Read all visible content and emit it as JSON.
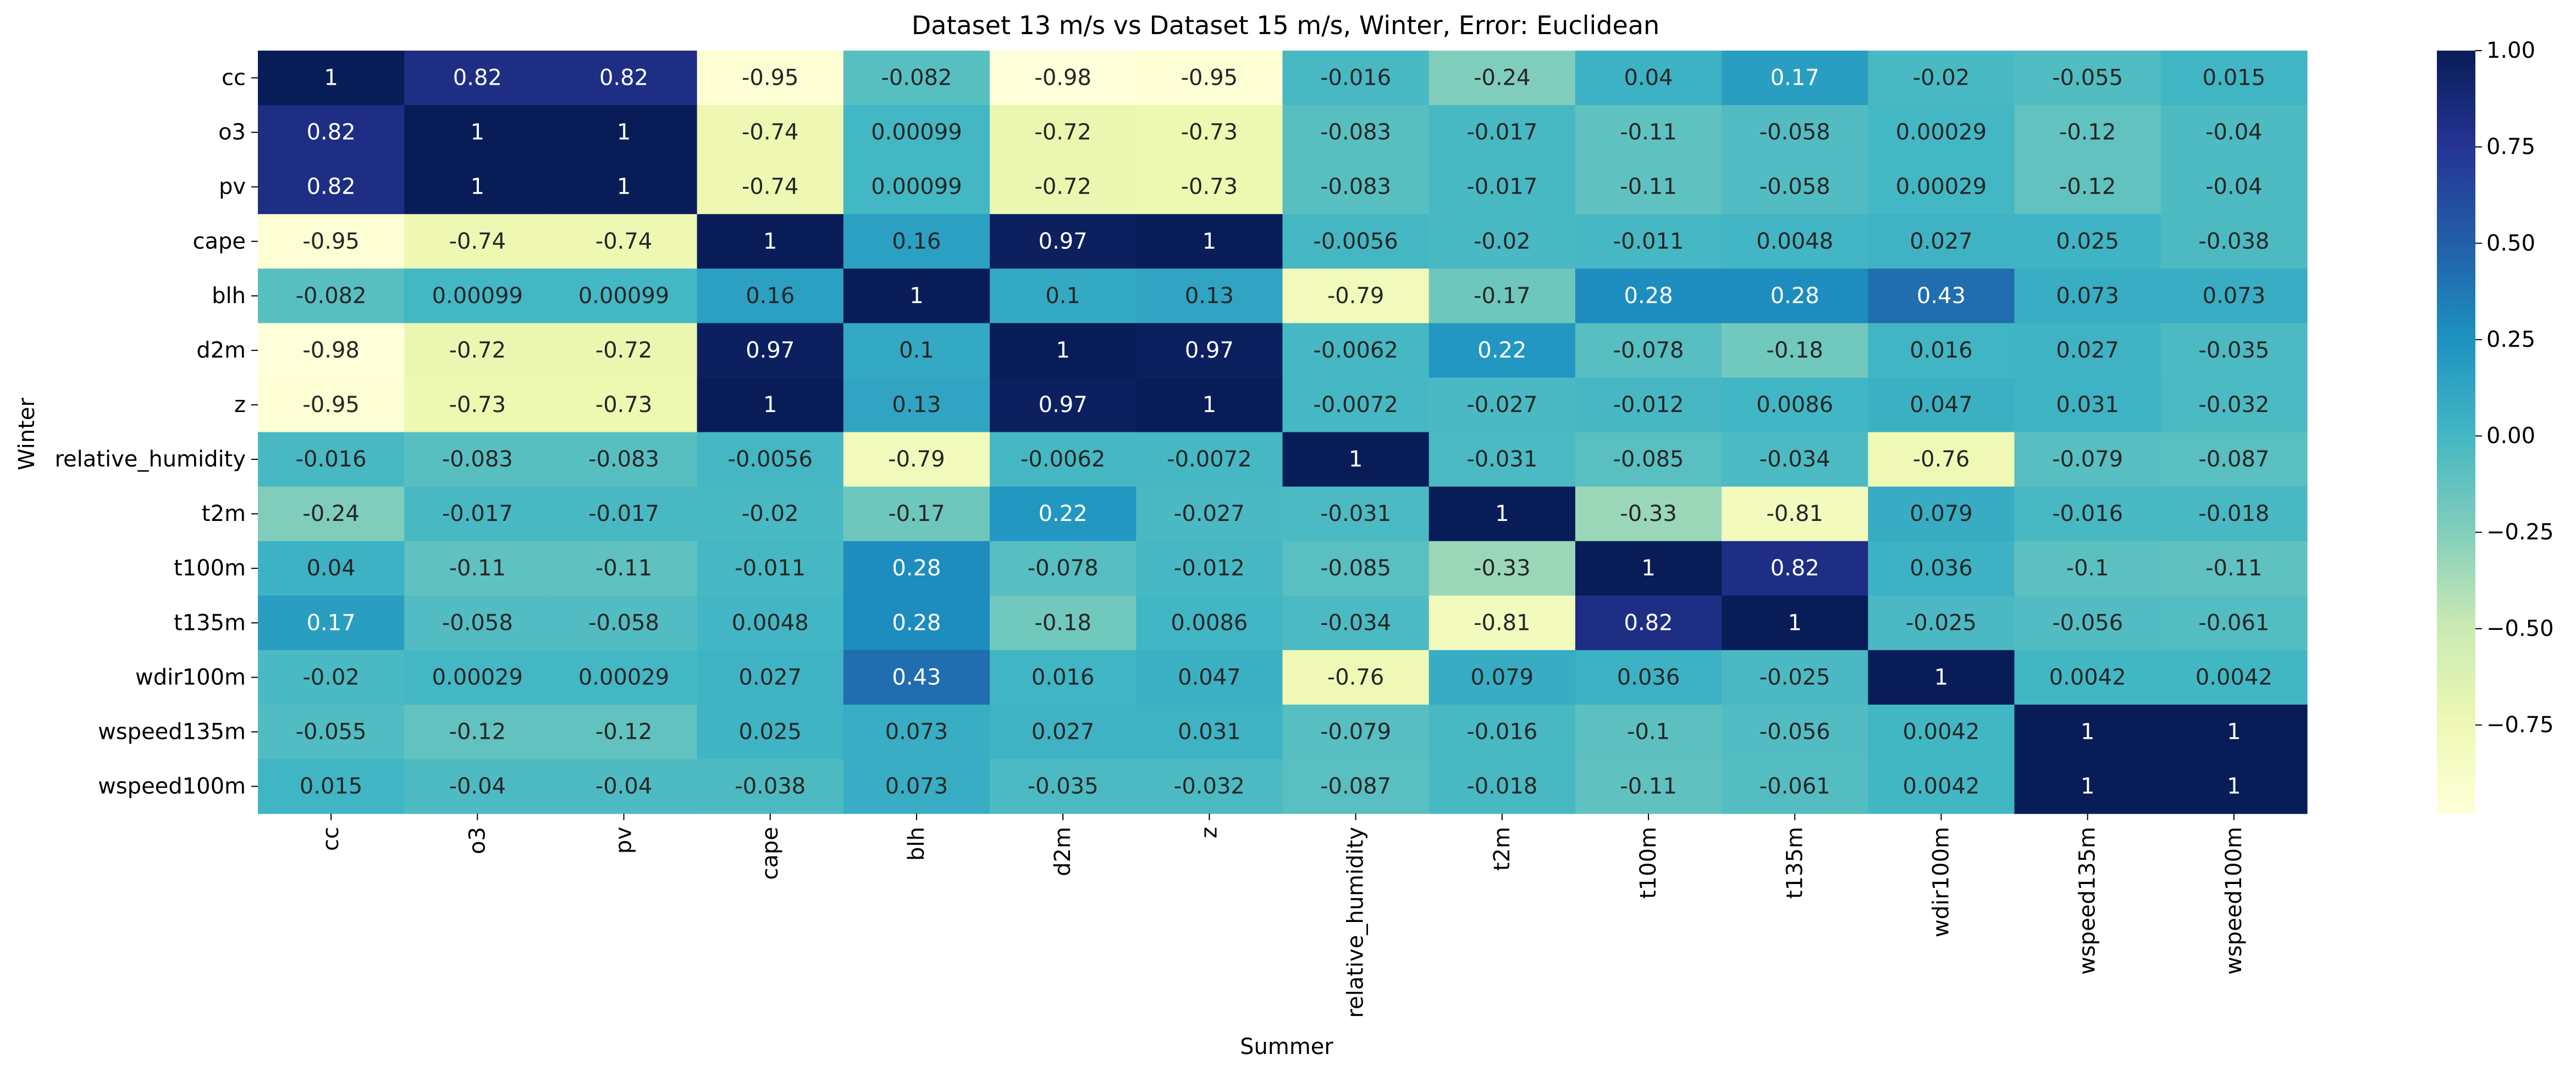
{
  "chart_data": {
    "type": "heatmap",
    "title": "Dataset 13 m/s vs Dataset 15 m/s, Winter, Error: Euclidean",
    "xlabel": "Summer",
    "ylabel": "Winter",
    "colormap": "YlGnBu",
    "vmin": -0.98,
    "vmax": 1.0,
    "colorbar_ticks": [
      {
        "value": 1.0,
        "label": "1.00"
      },
      {
        "value": 0.75,
        "label": "0.75"
      },
      {
        "value": 0.5,
        "label": "0.50"
      },
      {
        "value": 0.25,
        "label": "0.25"
      },
      {
        "value": 0.0,
        "label": "0.00"
      },
      {
        "value": -0.25,
        "label": "−0.25"
      },
      {
        "value": -0.5,
        "label": "−0.50"
      },
      {
        "value": -0.75,
        "label": "−0.75"
      }
    ],
    "x_labels": [
      "cc",
      "o3",
      "pv",
      "cape",
      "blh",
      "d2m",
      "z",
      "relative_humidity",
      "t2m",
      "t100m",
      "t135m",
      "wdir100m",
      "wspeed135m",
      "wspeed100m"
    ],
    "y_labels": [
      "cc",
      "o3",
      "pv",
      "cape",
      "blh",
      "d2m",
      "z",
      "relative_humidity",
      "t2m",
      "t100m",
      "t135m",
      "wdir100m",
      "wspeed135m",
      "wspeed100m"
    ],
    "values": [
      [
        1,
        0.82,
        0.82,
        -0.95,
        -0.082,
        -0.98,
        -0.95,
        -0.016,
        -0.24,
        0.04,
        0.17,
        -0.02,
        -0.055,
        0.015
      ],
      [
        0.82,
        1,
        1,
        -0.74,
        0.00099,
        -0.72,
        -0.73,
        -0.083,
        -0.017,
        -0.11,
        -0.058,
        0.00029,
        -0.12,
        -0.04
      ],
      [
        0.82,
        1,
        1,
        -0.74,
        0.00099,
        -0.72,
        -0.73,
        -0.083,
        -0.017,
        -0.11,
        -0.058,
        0.00029,
        -0.12,
        -0.04
      ],
      [
        -0.95,
        -0.74,
        -0.74,
        1,
        0.16,
        0.97,
        1,
        -0.0056,
        -0.02,
        -0.011,
        0.0048,
        0.027,
        0.025,
        -0.038
      ],
      [
        -0.082,
        0.00099,
        0.00099,
        0.16,
        1,
        0.1,
        0.13,
        -0.79,
        -0.17,
        0.28,
        0.28,
        0.43,
        0.073,
        0.073
      ],
      [
        -0.98,
        -0.72,
        -0.72,
        0.97,
        0.1,
        1,
        0.97,
        -0.0062,
        0.22,
        -0.078,
        -0.18,
        0.016,
        0.027,
        -0.035
      ],
      [
        -0.95,
        -0.73,
        -0.73,
        1,
        0.13,
        0.97,
        1,
        -0.0072,
        -0.027,
        -0.012,
        0.0086,
        0.047,
        0.031,
        -0.032
      ],
      [
        -0.016,
        -0.083,
        -0.083,
        -0.0056,
        -0.79,
        -0.0062,
        -0.0072,
        1,
        -0.031,
        -0.085,
        -0.034,
        -0.76,
        -0.079,
        -0.087
      ],
      [
        -0.24,
        -0.017,
        -0.017,
        -0.02,
        -0.17,
        0.22,
        -0.027,
        -0.031,
        1,
        -0.33,
        -0.81,
        0.079,
        -0.016,
        -0.018
      ],
      [
        0.04,
        -0.11,
        -0.11,
        -0.011,
        0.28,
        -0.078,
        -0.012,
        -0.085,
        -0.33,
        1,
        0.82,
        0.036,
        -0.1,
        -0.11
      ],
      [
        0.17,
        -0.058,
        -0.058,
        0.0048,
        0.28,
        -0.18,
        0.0086,
        -0.034,
        -0.81,
        0.82,
        1,
        -0.025,
        -0.056,
        -0.061
      ],
      [
        -0.02,
        0.00029,
        0.00029,
        0.027,
        0.43,
        0.016,
        0.047,
        -0.76,
        0.079,
        0.036,
        -0.025,
        1,
        0.0042,
        0.0042
      ],
      [
        -0.055,
        -0.12,
        -0.12,
        0.025,
        0.073,
        0.027,
        0.031,
        -0.079,
        -0.016,
        -0.1,
        -0.056,
        0.0042,
        1,
        1
      ],
      [
        0.015,
        -0.04,
        -0.04,
        -0.038,
        0.073,
        -0.035,
        -0.032,
        -0.087,
        -0.018,
        -0.11,
        -0.061,
        0.0042,
        1,
        1
      ]
    ],
    "cell_labels": [
      [
        "1",
        "0.82",
        "0.82",
        "-0.95",
        "-0.082",
        "-0.98",
        "-0.95",
        "-0.016",
        "-0.24",
        "0.04",
        "0.17",
        "-0.02",
        "-0.055",
        "0.015"
      ],
      [
        "0.82",
        "1",
        "1",
        "-0.74",
        "0.00099",
        "-0.72",
        "-0.73",
        "-0.083",
        "-0.017",
        "-0.11",
        "-0.058",
        "0.00029",
        "-0.12",
        "-0.04"
      ],
      [
        "0.82",
        "1",
        "1",
        "-0.74",
        "0.00099",
        "-0.72",
        "-0.73",
        "-0.083",
        "-0.017",
        "-0.11",
        "-0.058",
        "0.00029",
        "-0.12",
        "-0.04"
      ],
      [
        "-0.95",
        "-0.74",
        "-0.74",
        "1",
        "0.16",
        "0.97",
        "1",
        "-0.0056",
        "-0.02",
        "-0.011",
        "0.0048",
        "0.027",
        "0.025",
        "-0.038"
      ],
      [
        "-0.082",
        "0.00099",
        "0.00099",
        "0.16",
        "1",
        "0.1",
        "0.13",
        "-0.79",
        "-0.17",
        "0.28",
        "0.28",
        "0.43",
        "0.073",
        "0.073"
      ],
      [
        "-0.98",
        "-0.72",
        "-0.72",
        "0.97",
        "0.1",
        "1",
        "0.97",
        "-0.0062",
        "0.22",
        "-0.078",
        "-0.18",
        "0.016",
        "0.027",
        "-0.035"
      ],
      [
        "-0.95",
        "-0.73",
        "-0.73",
        "1",
        "0.13",
        "0.97",
        "1",
        "-0.0072",
        "-0.027",
        "-0.012",
        "0.0086",
        "0.047",
        "0.031",
        "-0.032"
      ],
      [
        "-0.016",
        "-0.083",
        "-0.083",
        "-0.0056",
        "-0.79",
        "-0.0062",
        "-0.0072",
        "1",
        "-0.031",
        "-0.085",
        "-0.034",
        "-0.76",
        "-0.079",
        "-0.087"
      ],
      [
        "-0.24",
        "-0.017",
        "-0.017",
        "-0.02",
        "-0.17",
        "0.22",
        "-0.027",
        "-0.031",
        "1",
        "-0.33",
        "-0.81",
        "0.079",
        "-0.016",
        "-0.018"
      ],
      [
        "0.04",
        "-0.11",
        "-0.11",
        "-0.011",
        "0.28",
        "-0.078",
        "-0.012",
        "-0.085",
        "-0.33",
        "1",
        "0.82",
        "0.036",
        "-0.1",
        "-0.11"
      ],
      [
        "0.17",
        "-0.058",
        "-0.058",
        "0.0048",
        "0.28",
        "-0.18",
        "0.0086",
        "-0.034",
        "-0.81",
        "0.82",
        "1",
        "-0.025",
        "-0.056",
        "-0.061"
      ],
      [
        "-0.02",
        "0.00029",
        "0.00029",
        "0.027",
        "0.43",
        "0.016",
        "0.047",
        "-0.76",
        "0.079",
        "0.036",
        "-0.025",
        "1",
        "0.0042",
        "0.0042"
      ],
      [
        "-0.055",
        "-0.12",
        "-0.12",
        "0.025",
        "0.073",
        "0.027",
        "0.031",
        "-0.079",
        "-0.016",
        "-0.1",
        "-0.056",
        "0.0042",
        "1",
        "1"
      ],
      [
        "0.015",
        "-0.04",
        "-0.04",
        "-0.038",
        "0.073",
        "-0.035",
        "-0.032",
        "-0.087",
        "-0.018",
        "-0.11",
        "-0.061",
        "0.0042",
        "1",
        "1"
      ]
    ],
    "colormap_stops": [
      "#ffffd9",
      "#edf8b1",
      "#c7e9b4",
      "#7fcdbb",
      "#41b6c4",
      "#1d91c0",
      "#225ea8",
      "#253494",
      "#081d58"
    ],
    "annotation_text_colors": {
      "on_dark": "#ffffff",
      "on_light": "#262626"
    },
    "grid": false,
    "legend": "colorbar right"
  }
}
